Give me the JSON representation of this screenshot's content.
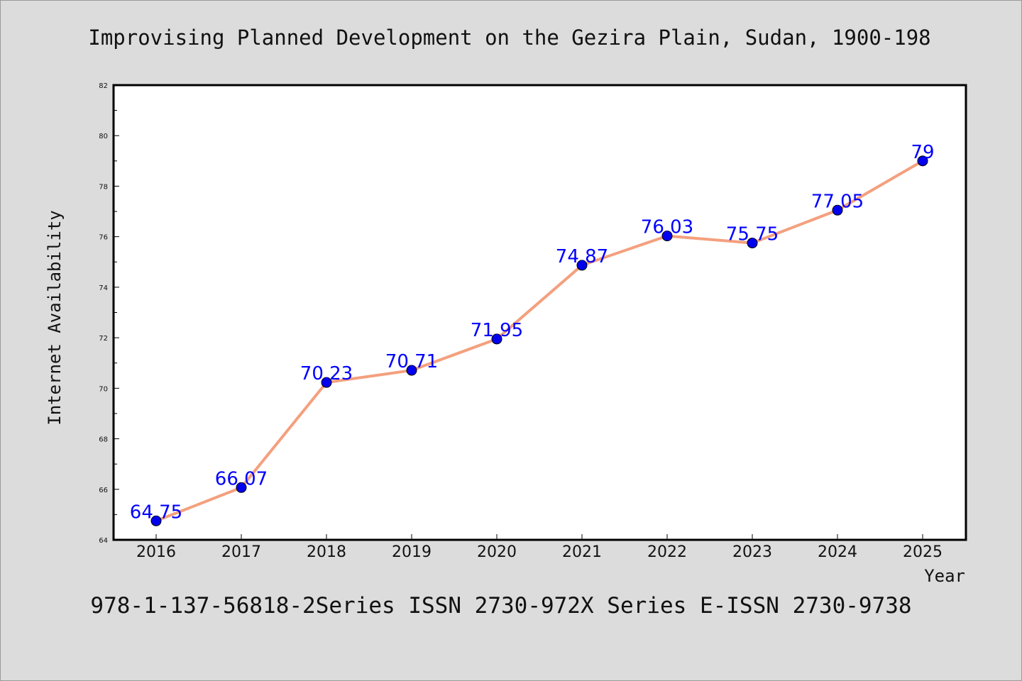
{
  "chart_data": {
    "type": "line",
    "title": "Improvising Planned Development on the Gezira Plain, Sudan, 1900-198",
    "footer": "978-1-137-56818-2Series ISSN 2730-972X Series E-ISSN 2730-9738",
    "xlabel": "Year",
    "ylabel": "Internet Availability",
    "categories": [
      "2016",
      "2017",
      "2018",
      "2019",
      "2020",
      "2021",
      "2022",
      "2023",
      "2024",
      "2025"
    ],
    "series": [
      {
        "values": [
          64.75,
          66.07,
          70.23,
          70.71,
          71.95,
          74.87,
          76.03,
          75.75,
          77.05,
          79
        ],
        "labels": [
          "64.75",
          "66.07",
          "70.23",
          "70.71",
          "71.95",
          "74.87",
          "76.03",
          "75.75",
          "77.05",
          "79"
        ],
        "line_color": "#f4a07e",
        "marker_color": "#0000ee"
      }
    ],
    "ylim": [
      64,
      82
    ],
    "yticks": [
      "64",
      "66",
      "68",
      "70",
      "72",
      "74",
      "76",
      "78",
      "80",
      "82"
    ],
    "grid": false,
    "legend": "none"
  }
}
